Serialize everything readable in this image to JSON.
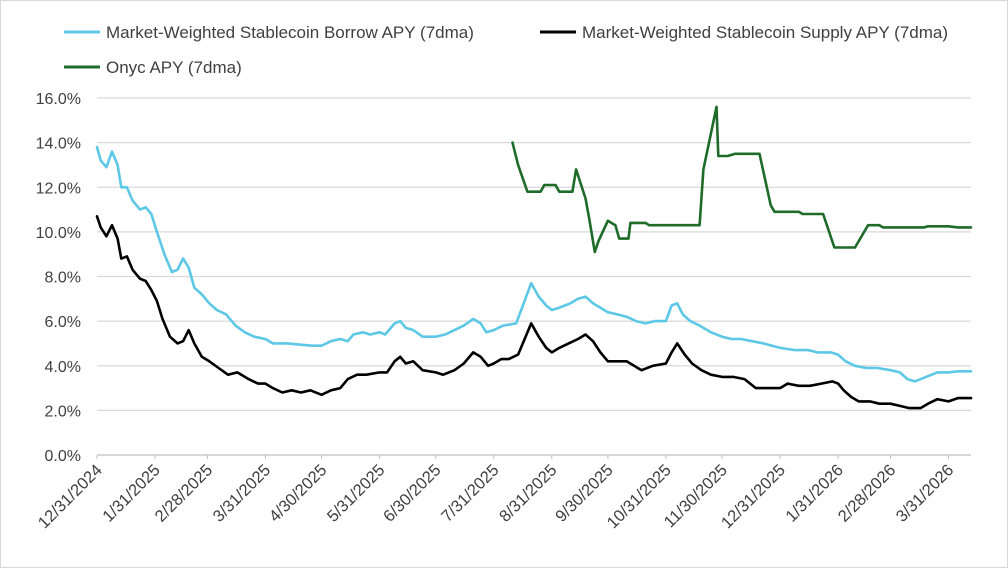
{
  "chart_data": {
    "type": "line",
    "title": "",
    "xlabel": "",
    "ylabel": "",
    "ylim": [
      0,
      16
    ],
    "y_ticks": [
      "0.0%",
      "2.0%",
      "4.0%",
      "6.0%",
      "8.0%",
      "10.0%",
      "12.0%",
      "14.0%",
      "16.0%"
    ],
    "x_ticks": [
      "12/31/2024",
      "1/31/2025",
      "2/28/2025",
      "3/31/2025",
      "4/30/2025",
      "5/31/2025",
      "6/30/2025",
      "7/31/2025",
      "8/31/2025",
      "9/30/2025",
      "10/31/2025",
      "11/30/2025",
      "12/31/2025",
      "1/31/2026",
      "2/28/2026",
      "3/31/2026"
    ],
    "grid": "horizontal",
    "legend_position": "top",
    "series": [
      {
        "name": "Market-Weighted Stablecoin Borrow APY (7dma)",
        "color": "#5dc8e6",
        "points": [
          [
            "2024-12-31",
            13.8
          ],
          [
            "2025-01-02",
            13.2
          ],
          [
            "2025-01-05",
            12.9
          ],
          [
            "2025-01-08",
            13.6
          ],
          [
            "2025-01-11",
            13.0
          ],
          [
            "2025-01-13",
            12.0
          ],
          [
            "2025-01-16",
            12.0
          ],
          [
            "2025-01-19",
            11.4
          ],
          [
            "2025-01-23",
            11.0
          ],
          [
            "2025-01-26",
            11.1
          ],
          [
            "2025-01-29",
            10.8
          ],
          [
            "2025-02-01",
            10.0
          ],
          [
            "2025-02-05",
            9.0
          ],
          [
            "2025-02-09",
            8.2
          ],
          [
            "2025-02-12",
            8.3
          ],
          [
            "2025-02-15",
            8.8
          ],
          [
            "2025-02-18",
            8.4
          ],
          [
            "2025-02-21",
            7.5
          ],
          [
            "2025-02-25",
            7.2
          ],
          [
            "2025-03-01",
            6.8
          ],
          [
            "2025-03-05",
            6.5
          ],
          [
            "2025-03-10",
            6.3
          ],
          [
            "2025-03-15",
            5.8
          ],
          [
            "2025-03-20",
            5.5
          ],
          [
            "2025-03-25",
            5.3
          ],
          [
            "2025-03-31",
            5.2
          ],
          [
            "2025-04-04",
            5.0
          ],
          [
            "2025-04-12",
            5.0
          ],
          [
            "2025-04-18",
            4.95
          ],
          [
            "2025-04-25",
            4.9
          ],
          [
            "2025-04-30",
            4.9
          ],
          [
            "2025-05-05",
            5.1
          ],
          [
            "2025-05-10",
            5.2
          ],
          [
            "2025-05-14",
            5.1
          ],
          [
            "2025-05-17",
            5.4
          ],
          [
            "2025-05-22",
            5.5
          ],
          [
            "2025-05-26",
            5.4
          ],
          [
            "2025-05-31",
            5.5
          ],
          [
            "2025-06-03",
            5.4
          ],
          [
            "2025-06-08",
            5.9
          ],
          [
            "2025-06-11",
            6.0
          ],
          [
            "2025-06-14",
            5.7
          ],
          [
            "2025-06-18",
            5.6
          ],
          [
            "2025-06-23",
            5.3
          ],
          [
            "2025-06-30",
            5.3
          ],
          [
            "2025-07-05",
            5.4
          ],
          [
            "2025-07-10",
            5.6
          ],
          [
            "2025-07-15",
            5.8
          ],
          [
            "2025-07-20",
            6.1
          ],
          [
            "2025-07-24",
            5.9
          ],
          [
            "2025-07-27",
            5.5
          ],
          [
            "2025-07-31",
            5.6
          ],
          [
            "2025-08-05",
            5.8
          ],
          [
            "2025-08-12",
            5.9
          ],
          [
            "2025-08-16",
            6.8
          ],
          [
            "2025-08-20",
            7.7
          ],
          [
            "2025-08-24",
            7.1
          ],
          [
            "2025-08-28",
            6.7
          ],
          [
            "2025-08-31",
            6.5
          ],
          [
            "2025-09-04",
            6.6
          ],
          [
            "2025-09-10",
            6.8
          ],
          [
            "2025-09-14",
            7.0
          ],
          [
            "2025-09-18",
            7.1
          ],
          [
            "2025-09-22",
            6.8
          ],
          [
            "2025-09-26",
            6.6
          ],
          [
            "2025-09-30",
            6.4
          ],
          [
            "2025-10-05",
            6.3
          ],
          [
            "2025-10-10",
            6.2
          ],
          [
            "2025-10-15",
            6.0
          ],
          [
            "2025-10-20",
            5.9
          ],
          [
            "2025-10-25",
            6.0
          ],
          [
            "2025-10-31",
            6.0
          ],
          [
            "2025-11-03",
            6.7
          ],
          [
            "2025-11-06",
            6.8
          ],
          [
            "2025-11-09",
            6.3
          ],
          [
            "2025-11-13",
            6.0
          ],
          [
            "2025-11-18",
            5.8
          ],
          [
            "2025-11-24",
            5.5
          ],
          [
            "2025-11-30",
            5.3
          ],
          [
            "2025-12-05",
            5.2
          ],
          [
            "2025-12-10",
            5.2
          ],
          [
            "2025-12-16",
            5.1
          ],
          [
            "2025-12-22",
            5.0
          ],
          [
            "2025-12-31",
            4.8
          ],
          [
            "2026-01-08",
            4.7
          ],
          [
            "2026-01-15",
            4.7
          ],
          [
            "2026-01-20",
            4.6
          ],
          [
            "2026-01-27",
            4.6
          ],
          [
            "2026-01-31",
            4.5
          ],
          [
            "2026-02-04",
            4.2
          ],
          [
            "2026-02-09",
            4.0
          ],
          [
            "2026-02-15",
            3.9
          ],
          [
            "2026-02-21",
            3.9
          ],
          [
            "2026-02-28",
            3.8
          ],
          [
            "2026-03-05",
            3.7
          ],
          [
            "2026-03-09",
            3.4
          ],
          [
            "2026-03-13",
            3.3
          ],
          [
            "2026-03-19",
            3.5
          ],
          [
            "2026-03-25",
            3.7
          ],
          [
            "2026-03-31",
            3.7
          ],
          [
            "2026-04-05",
            3.75
          ],
          [
            "2026-04-12",
            3.75
          ]
        ]
      },
      {
        "name": "Market-Weighted Stablecoin Supply APY (7dma)",
        "color": "#000000",
        "points": [
          [
            "2024-12-31",
            10.7
          ],
          [
            "2025-01-02",
            10.2
          ],
          [
            "2025-01-05",
            9.8
          ],
          [
            "2025-01-08",
            10.3
          ],
          [
            "2025-01-11",
            9.7
          ],
          [
            "2025-01-13",
            8.8
          ],
          [
            "2025-01-16",
            8.9
          ],
          [
            "2025-01-19",
            8.3
          ],
          [
            "2025-01-23",
            7.9
          ],
          [
            "2025-01-26",
            7.8
          ],
          [
            "2025-01-29",
            7.4
          ],
          [
            "2025-02-01",
            6.9
          ],
          [
            "2025-02-04",
            6.1
          ],
          [
            "2025-02-08",
            5.3
          ],
          [
            "2025-02-12",
            5.0
          ],
          [
            "2025-02-15",
            5.1
          ],
          [
            "2025-02-18",
            5.6
          ],
          [
            "2025-02-21",
            5.0
          ],
          [
            "2025-02-25",
            4.4
          ],
          [
            "2025-03-01",
            4.2
          ],
          [
            "2025-03-06",
            3.9
          ],
          [
            "2025-03-11",
            3.6
          ],
          [
            "2025-03-16",
            3.7
          ],
          [
            "2025-03-22",
            3.4
          ],
          [
            "2025-03-27",
            3.2
          ],
          [
            "2025-03-31",
            3.2
          ],
          [
            "2025-04-04",
            3.0
          ],
          [
            "2025-04-09",
            2.8
          ],
          [
            "2025-04-14",
            2.9
          ],
          [
            "2025-04-19",
            2.8
          ],
          [
            "2025-04-24",
            2.9
          ],
          [
            "2025-04-30",
            2.7
          ],
          [
            "2025-05-05",
            2.9
          ],
          [
            "2025-05-10",
            3.0
          ],
          [
            "2025-05-14",
            3.4
          ],
          [
            "2025-05-19",
            3.6
          ],
          [
            "2025-05-24",
            3.6
          ],
          [
            "2025-05-31",
            3.7
          ],
          [
            "2025-06-04",
            3.7
          ],
          [
            "2025-06-08",
            4.2
          ],
          [
            "2025-06-11",
            4.4
          ],
          [
            "2025-06-14",
            4.1
          ],
          [
            "2025-06-18",
            4.2
          ],
          [
            "2025-06-23",
            3.8
          ],
          [
            "2025-06-30",
            3.7
          ],
          [
            "2025-07-04",
            3.6
          ],
          [
            "2025-07-10",
            3.8
          ],
          [
            "2025-07-15",
            4.1
          ],
          [
            "2025-07-20",
            4.6
          ],
          [
            "2025-07-24",
            4.4
          ],
          [
            "2025-07-28",
            4.0
          ],
          [
            "2025-07-31",
            4.1
          ],
          [
            "2025-08-04",
            4.3
          ],
          [
            "2025-08-08",
            4.3
          ],
          [
            "2025-08-13",
            4.5
          ],
          [
            "2025-08-17",
            5.3
          ],
          [
            "2025-08-20",
            5.9
          ],
          [
            "2025-08-24",
            5.3
          ],
          [
            "2025-08-28",
            4.8
          ],
          [
            "2025-08-31",
            4.6
          ],
          [
            "2025-09-04",
            4.8
          ],
          [
            "2025-09-09",
            5.0
          ],
          [
            "2025-09-14",
            5.2
          ],
          [
            "2025-09-18",
            5.4
          ],
          [
            "2025-09-22",
            5.1
          ],
          [
            "2025-09-26",
            4.6
          ],
          [
            "2025-09-30",
            4.2
          ],
          [
            "2025-10-05",
            4.2
          ],
          [
            "2025-10-10",
            4.2
          ],
          [
            "2025-10-14",
            4.0
          ],
          [
            "2025-10-18",
            3.8
          ],
          [
            "2025-10-24",
            4.0
          ],
          [
            "2025-10-31",
            4.1
          ],
          [
            "2025-11-03",
            4.6
          ],
          [
            "2025-11-06",
            5.0
          ],
          [
            "2025-11-10",
            4.5
          ],
          [
            "2025-11-14",
            4.1
          ],
          [
            "2025-11-19",
            3.8
          ],
          [
            "2025-11-24",
            3.6
          ],
          [
            "2025-11-30",
            3.5
          ],
          [
            "2025-12-06",
            3.5
          ],
          [
            "2025-12-12",
            3.4
          ],
          [
            "2025-12-18",
            3.0
          ],
          [
            "2025-12-24",
            3.0
          ],
          [
            "2025-12-31",
            3.0
          ],
          [
            "2026-01-04",
            3.2
          ],
          [
            "2026-01-10",
            3.1
          ],
          [
            "2026-01-16",
            3.1
          ],
          [
            "2026-01-22",
            3.2
          ],
          [
            "2026-01-28",
            3.3
          ],
          [
            "2026-01-31",
            3.2
          ],
          [
            "2026-02-03",
            2.9
          ],
          [
            "2026-02-07",
            2.6
          ],
          [
            "2026-02-11",
            2.4
          ],
          [
            "2026-02-17",
            2.4
          ],
          [
            "2026-02-22",
            2.3
          ],
          [
            "2026-02-28",
            2.3
          ],
          [
            "2026-03-05",
            2.2
          ],
          [
            "2026-03-10",
            2.1
          ],
          [
            "2026-03-16",
            2.1
          ],
          [
            "2026-03-20",
            2.3
          ],
          [
            "2026-03-25",
            2.5
          ],
          [
            "2026-03-31",
            2.4
          ],
          [
            "2026-04-05",
            2.55
          ],
          [
            "2026-04-12",
            2.55
          ]
        ]
      },
      {
        "name": "Onyc APY (7dma)",
        "color": "#1e6b2a",
        "points": [
          [
            "2025-08-10",
            14.0
          ],
          [
            "2025-08-13",
            13.0
          ],
          [
            "2025-08-18",
            11.8
          ],
          [
            "2025-08-25",
            11.8
          ],
          [
            "2025-08-27",
            12.1
          ],
          [
            "2025-09-02",
            12.1
          ],
          [
            "2025-09-04",
            11.8
          ],
          [
            "2025-09-11",
            11.8
          ],
          [
            "2025-09-13",
            12.8
          ],
          [
            "2025-09-18",
            11.5
          ],
          [
            "2025-09-20",
            10.6
          ],
          [
            "2025-09-23",
            9.1
          ],
          [
            "2025-09-25",
            9.6
          ],
          [
            "2025-09-30",
            10.5
          ],
          [
            "2025-10-04",
            10.3
          ],
          [
            "2025-10-06",
            9.7
          ],
          [
            "2025-10-11",
            9.7
          ],
          [
            "2025-10-12",
            10.4
          ],
          [
            "2025-10-20",
            10.4
          ],
          [
            "2025-10-22",
            10.3
          ],
          [
            "2025-11-03",
            10.3
          ],
          [
            "2025-11-05",
            10.3
          ],
          [
            "2025-11-18",
            10.3
          ],
          [
            "2025-11-20",
            12.8
          ],
          [
            "2025-11-27",
            15.6
          ],
          [
            "2025-11-28",
            13.4
          ],
          [
            "2025-12-03",
            13.4
          ],
          [
            "2025-12-07",
            13.5
          ],
          [
            "2025-12-20",
            13.5
          ],
          [
            "2025-12-26",
            11.2
          ],
          [
            "2025-12-28",
            10.9
          ],
          [
            "2026-01-10",
            10.9
          ],
          [
            "2026-01-12",
            10.8
          ],
          [
            "2026-01-23",
            10.8
          ],
          [
            "2026-01-29",
            9.3
          ],
          [
            "2026-02-09",
            9.3
          ],
          [
            "2026-02-16",
            10.3
          ],
          [
            "2026-02-22",
            10.3
          ],
          [
            "2026-02-24",
            10.2
          ],
          [
            "2026-03-10",
            10.2
          ],
          [
            "2026-03-18",
            10.2
          ],
          [
            "2026-03-20",
            10.25
          ],
          [
            "2026-03-31",
            10.25
          ],
          [
            "2026-04-05",
            10.2
          ],
          [
            "2026-04-12",
            10.2
          ]
        ]
      }
    ]
  }
}
